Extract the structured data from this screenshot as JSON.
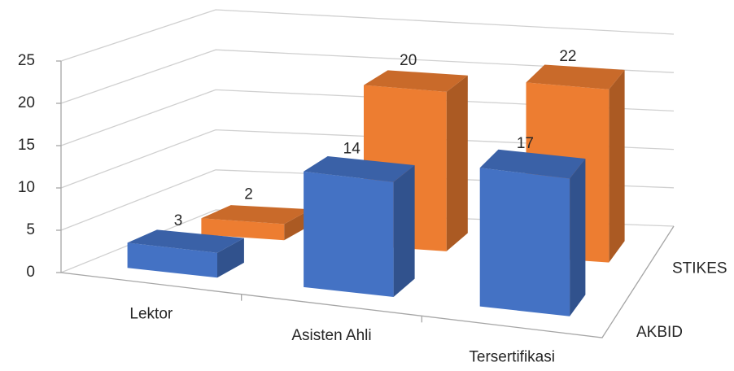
{
  "chart_data": {
    "type": "bar3d",
    "categories": [
      "Lektor",
      "Asisten Ahli",
      "Tersertifikasi"
    ],
    "series": [
      {
        "name": "AKBID",
        "color": "#4472c4",
        "values": [
          3,
          14,
          17
        ]
      },
      {
        "name": "STIKES",
        "color": "#ed7d31",
        "values": [
          2,
          20,
          22
        ]
      }
    ],
    "ylim": [
      0,
      25
    ],
    "yticks": [
      0,
      5,
      10,
      15,
      20,
      25
    ],
    "grid": true
  }
}
